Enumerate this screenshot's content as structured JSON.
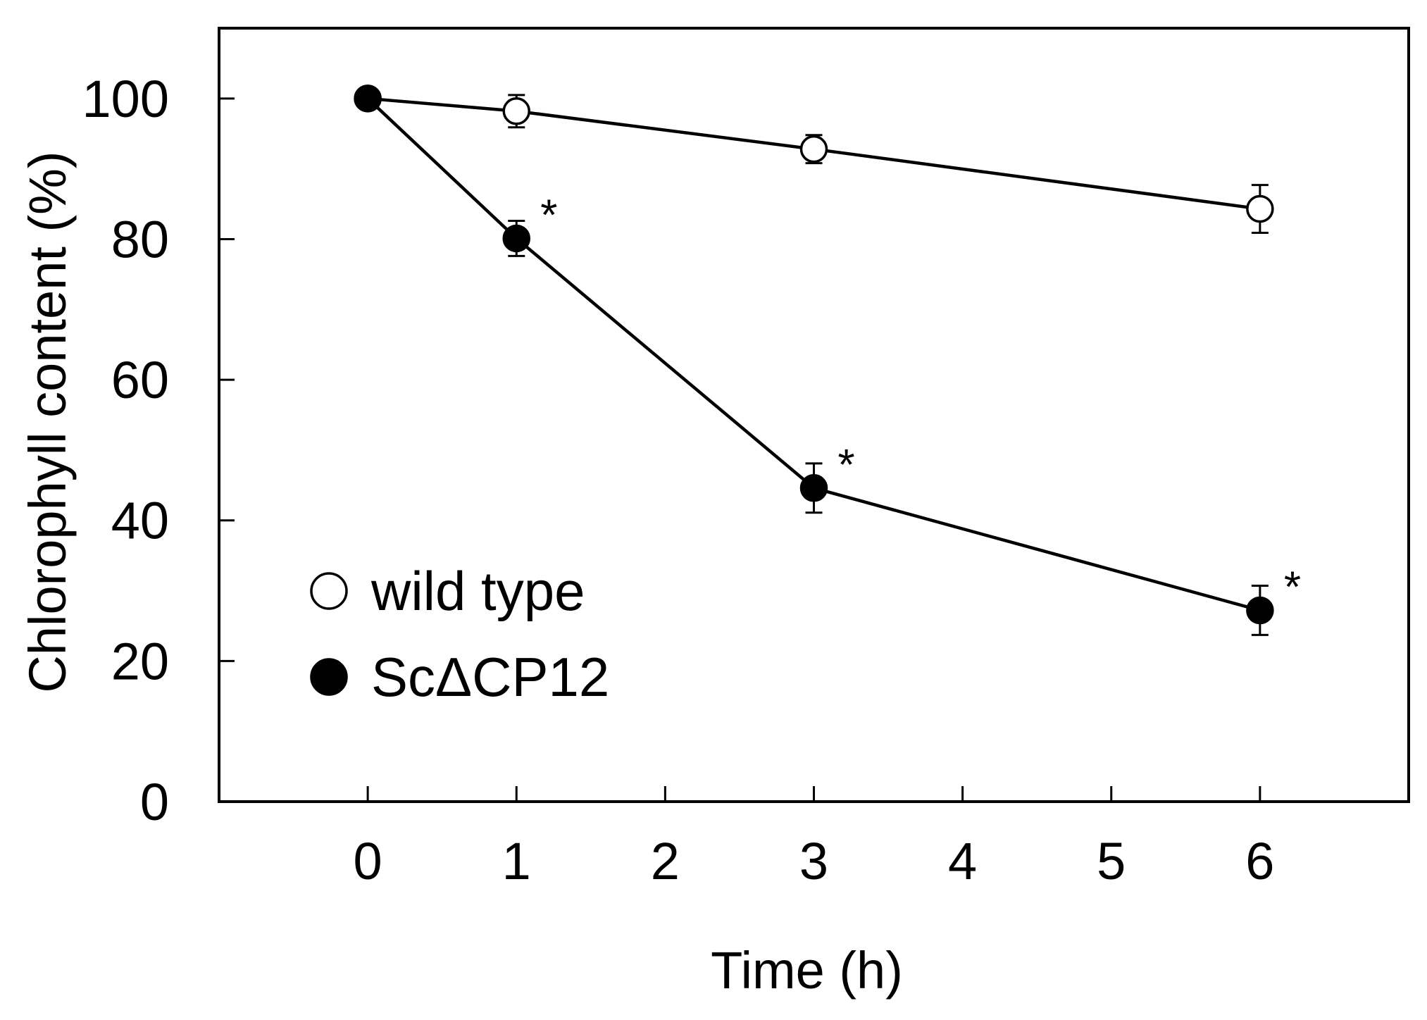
{
  "chart_data": {
    "type": "line",
    "title": "",
    "xlabel": "Time (h)",
    "ylabel": "Chlorophyll content (%)",
    "xlim": [
      -1,
      7
    ],
    "ylim": [
      0,
      110
    ],
    "x_ticks": [
      0,
      1,
      2,
      3,
      4,
      5,
      6
    ],
    "x_tick_labels": [
      "0",
      "1",
      "2",
      "3",
      "4",
      "5",
      "6"
    ],
    "y_ticks": [
      0,
      20,
      40,
      60,
      80,
      100
    ],
    "y_tick_labels": [
      "0",
      "20",
      "40",
      "60",
      "80",
      "100"
    ],
    "grid": false,
    "legend_position": "bottom-left",
    "series": [
      {
        "name": "wild type",
        "marker": "open-circle",
        "x": [
          0,
          1,
          3,
          6
        ],
        "values": [
          100,
          98.2,
          92.8,
          84.3
        ],
        "errors": [
          0,
          2.3,
          2.0,
          3.4
        ],
        "line_color": "#000000",
        "fill_color": "#ffffff"
      },
      {
        "name": "ScΔCP12",
        "marker": "filled-circle",
        "x": [
          0,
          1,
          3,
          6
        ],
        "values": [
          100,
          80.1,
          44.6,
          27.2
        ],
        "errors": [
          0,
          2.5,
          3.5,
          3.5
        ],
        "line_color": "#000000",
        "fill_color": "#000000"
      }
    ],
    "annotations": [
      {
        "text": "*",
        "series": "ScΔCP12",
        "x": 1
      },
      {
        "text": "*",
        "series": "ScΔCP12",
        "x": 3
      },
      {
        "text": "*",
        "series": "ScΔCP12",
        "x": 6
      }
    ]
  }
}
